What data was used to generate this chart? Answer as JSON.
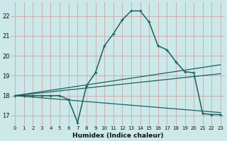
{
  "xlabel": "Humidex (Indice chaleur)",
  "background_color": "#cce8e8",
  "grid_color": "#aacccc",
  "line_color": "#1a6060",
  "xlim": [
    -0.5,
    23.5
  ],
  "ylim": [
    16.5,
    22.7
  ],
  "yticks": [
    17,
    18,
    19,
    20,
    21,
    22
  ],
  "xticks": [
    0,
    1,
    2,
    3,
    4,
    5,
    6,
    7,
    8,
    9,
    10,
    11,
    12,
    13,
    14,
    15,
    16,
    17,
    18,
    19,
    20,
    21,
    22,
    23
  ],
  "line1_x": [
    0,
    1,
    2,
    3,
    4,
    5,
    6,
    7,
    8,
    9,
    10,
    11,
    12,
    13,
    14,
    15,
    16,
    17,
    18,
    19,
    20,
    21,
    22,
    23
  ],
  "line1_y": [
    18.0,
    18.0,
    18.0,
    18.0,
    18.0,
    18.0,
    17.8,
    16.65,
    18.5,
    19.15,
    20.5,
    21.1,
    21.8,
    22.25,
    22.25,
    21.7,
    20.5,
    20.3,
    19.7,
    19.2,
    19.15,
    17.1,
    17.05,
    17.05
  ],
  "line2_x": [
    0,
    23
  ],
  "line2_y": [
    18.0,
    19.55
  ],
  "line3_x": [
    0,
    23
  ],
  "line3_y": [
    18.0,
    19.1
  ],
  "line4_x": [
    0,
    23
  ],
  "line4_y": [
    18.0,
    17.15
  ]
}
